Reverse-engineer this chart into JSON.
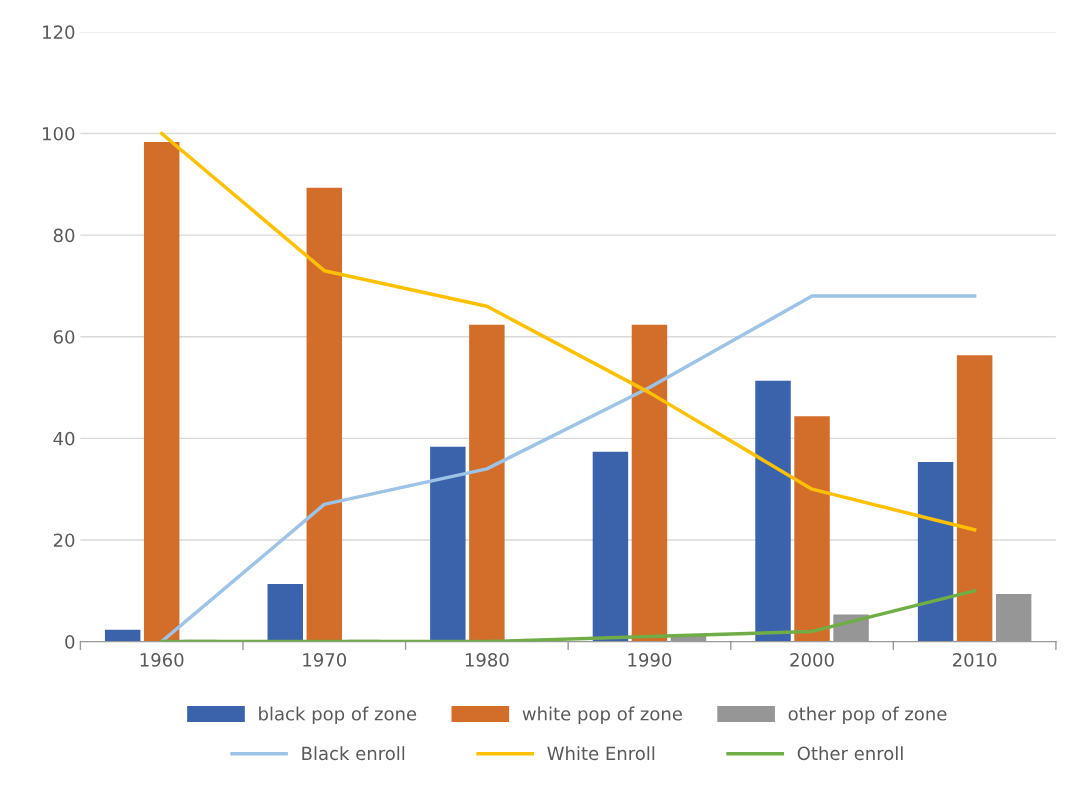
{
  "chart_data": {
    "type": "bar",
    "categories": [
      "1960",
      "1970",
      "1980",
      "1990",
      "2000",
      "2010"
    ],
    "series": [
      {
        "name": "black pop of zone",
        "color": "#3a63ac",
        "values": [
          2,
          11,
          38,
          37,
          51,
          35
        ]
      },
      {
        "name": "white pop of zone",
        "color": "#d36d2a",
        "values": [
          98,
          89,
          62,
          62,
          44,
          56
        ]
      },
      {
        "name": "other pop of zone",
        "color": "#969696",
        "values": [
          0,
          0,
          0,
          1,
          5,
          9
        ]
      },
      {
        "name": "Black enroll",
        "type": "line",
        "color": "#9dc3e6",
        "values": [
          0,
          27,
          34,
          50,
          68,
          68
        ]
      },
      {
        "name": "White Enroll",
        "type": "line",
        "color": "#ffc000",
        "values": [
          100,
          73,
          66,
          49,
          30,
          22
        ]
      },
      {
        "name": "Other enroll",
        "type": "line",
        "color": "#70ad47",
        "values": [
          0,
          0,
          0,
          1,
          2,
          10
        ]
      }
    ],
    "ylim": [
      0,
      120
    ],
    "yticks": [
      0,
      20,
      40,
      60,
      80,
      100,
      120
    ],
    "grid": "y",
    "legend": "bottom",
    "marker": "none",
    "line_style": "solid"
  }
}
